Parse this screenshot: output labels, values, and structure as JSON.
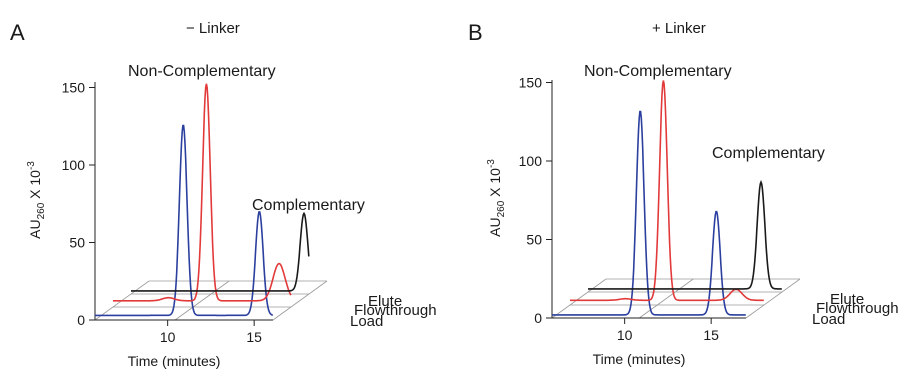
{
  "chart_data": [
    {
      "type": "line",
      "panel": "A",
      "condition": "− Linker",
      "xlabel": "Time (minutes)",
      "ylabel_main": "AU",
      "ylabel_sub": "260",
      "ylabel_rest": " X 10",
      "ylabel_exp": "-3",
      "x_ticks": [
        "10",
        "15"
      ],
      "y_ticks": [
        "0",
        "50",
        "100",
        "150"
      ],
      "ylim": [
        0,
        150
      ],
      "annotations": [
        "Non-Complementary",
        "Complementary"
      ],
      "series": [
        {
          "name": "Load",
          "color": "#2b3f9e",
          "baseline": 3,
          "peaks": [
            {
              "t": 10.9,
              "h": 126
            },
            {
              "t": 15.3,
              "h": 70
            }
          ]
        },
        {
          "name": "Flowthrough",
          "color": "#e23a3a",
          "baseline": 4,
          "peaks": [
            {
              "t": 9.0,
              "h": 6
            },
            {
              "t": 11.2,
              "h": 144
            },
            {
              "t": 15.4,
              "h": 28
            }
          ]
        },
        {
          "name": "Elute",
          "color": "#1a1a1a",
          "baseline": 2,
          "peaks": [
            {
              "t": 15.8,
              "h": 52
            }
          ]
        }
      ]
    },
    {
      "type": "line",
      "panel": "B",
      "condition": "+ Linker",
      "xlabel": "Time (minutes)",
      "ylabel_main": "AU",
      "ylabel_sub": "260",
      "ylabel_rest": " X 10",
      "ylabel_exp": "-3",
      "x_ticks": [
        "10",
        "15"
      ],
      "y_ticks": [
        "0",
        "50",
        "100",
        "150"
      ],
      "ylim": [
        0,
        150
      ],
      "annotations": [
        "Non-Complementary",
        "Complementary"
      ],
      "series": [
        {
          "name": "Load",
          "color": "#2b3f9e",
          "baseline": 2,
          "peaks": [
            {
              "t": 10.9,
              "h": 132
            },
            {
              "t": 15.3,
              "h": 68
            }
          ]
        },
        {
          "name": "Flowthrough",
          "color": "#e23a3a",
          "baseline": 3,
          "peaks": [
            {
              "t": 9.0,
              "h": 4
            },
            {
              "t": 11.2,
              "h": 143
            },
            {
              "t": 15.4,
              "h": 10
            }
          ]
        },
        {
          "name": "Elute",
          "color": "#1a1a1a",
          "baseline": 2,
          "peaks": [
            {
              "t": 15.8,
              "h": 70
            }
          ]
        }
      ]
    }
  ]
}
